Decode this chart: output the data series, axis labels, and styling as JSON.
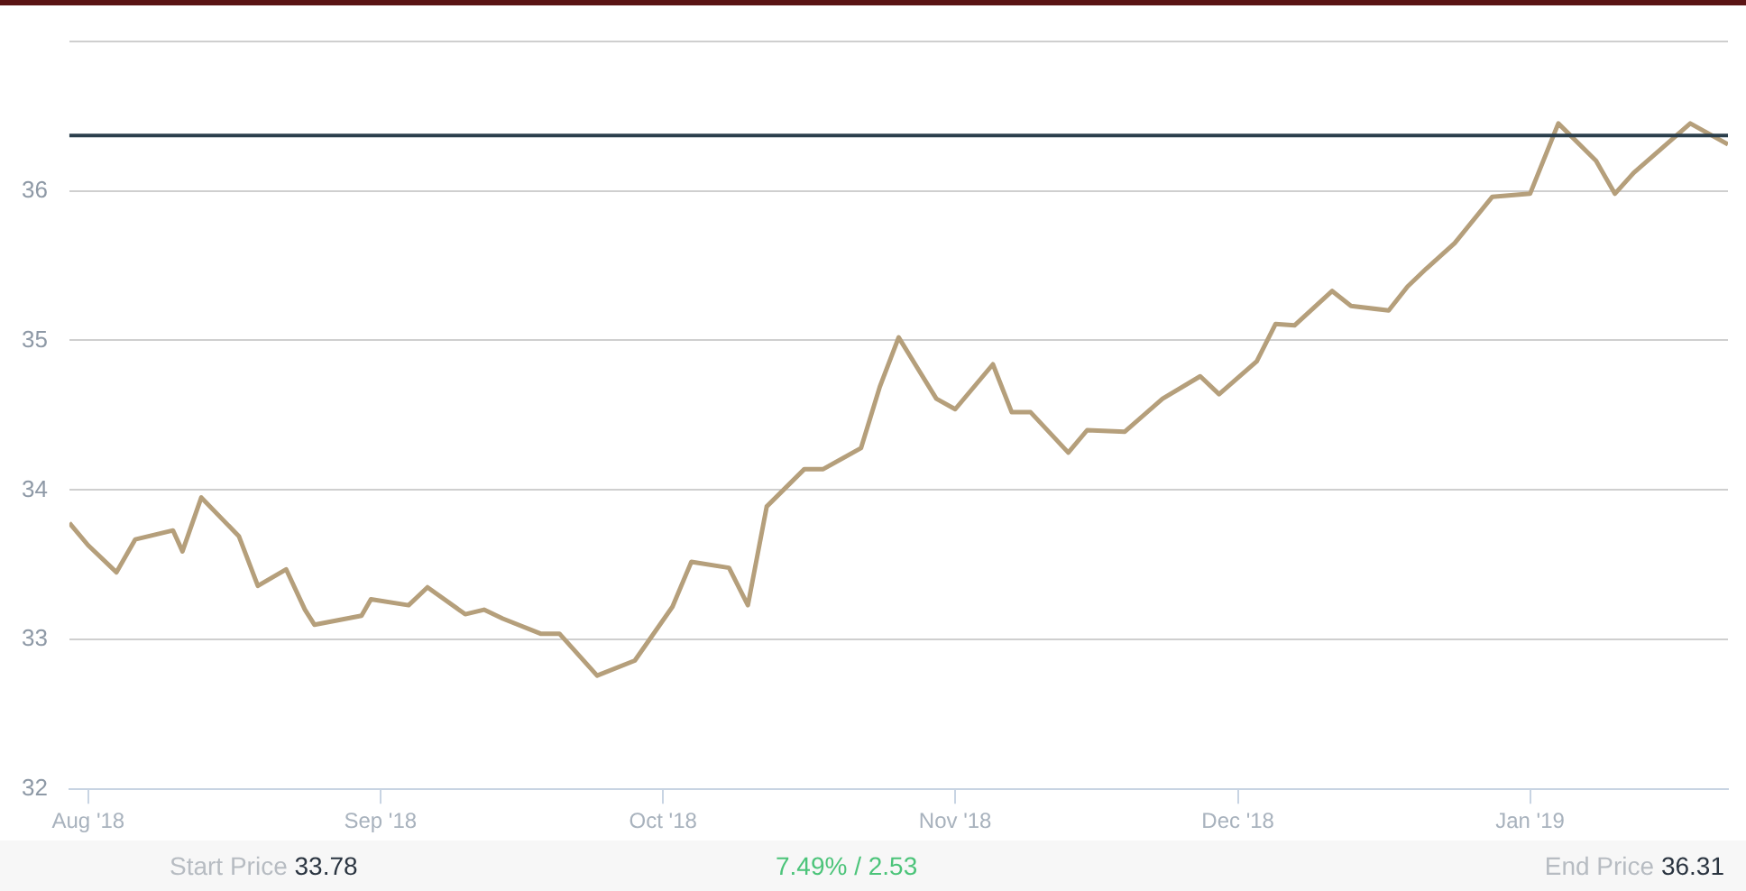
{
  "chart_data": {
    "type": "line",
    "x": [
      "2018-07-30",
      "2018-08-01",
      "2018-08-04",
      "2018-08-06",
      "2018-08-10",
      "2018-08-11",
      "2018-08-13",
      "2018-08-17",
      "2018-08-19",
      "2018-08-22",
      "2018-08-24",
      "2018-08-25",
      "2018-08-30",
      "2018-08-31",
      "2018-09-04",
      "2018-09-06",
      "2018-09-10",
      "2018-09-12",
      "2018-09-14",
      "2018-09-18",
      "2018-09-20",
      "2018-09-24",
      "2018-09-28",
      "2018-10-02",
      "2018-10-04",
      "2018-10-08",
      "2018-10-10",
      "2018-10-12",
      "2018-10-16",
      "2018-10-18",
      "2018-10-22",
      "2018-10-24",
      "2018-10-26",
      "2018-10-30",
      "2018-11-01",
      "2018-11-05",
      "2018-11-07",
      "2018-11-09",
      "2018-11-13",
      "2018-11-15",
      "2018-11-19",
      "2018-11-23",
      "2018-11-27",
      "2018-11-29",
      "2018-12-03",
      "2018-12-05",
      "2018-12-07",
      "2018-12-11",
      "2018-12-13",
      "2018-12-17",
      "2018-12-19",
      "2018-12-21",
      "2018-12-24",
      "2018-12-28",
      "2019-01-01",
      "2019-01-04",
      "2019-01-08",
      "2019-01-10",
      "2019-01-12",
      "2019-01-18",
      "2019-01-22"
    ],
    "series": [
      {
        "color": "#b59f7b",
        "values": [
          33.78,
          33.63,
          33.45,
          33.67,
          33.73,
          33.59,
          33.95,
          33.69,
          33.36,
          33.47,
          33.2,
          33.1,
          33.16,
          33.27,
          33.23,
          33.35,
          33.17,
          33.2,
          33.14,
          33.04,
          33.04,
          32.76,
          32.86,
          33.22,
          33.52,
          33.48,
          33.23,
          33.89,
          34.14,
          34.14,
          34.28,
          34.69,
          35.02,
          34.61,
          34.54,
          34.84,
          34.52,
          34.52,
          34.25,
          34.4,
          34.39,
          34.61,
          34.76,
          34.64,
          34.86,
          35.11,
          35.1,
          35.33,
          35.23,
          35.2,
          35.36,
          35.48,
          35.65,
          35.96,
          35.98,
          36.45,
          36.2,
          35.98,
          36.12,
          36.45,
          36.31
        ]
      }
    ],
    "xlim": [
      "2018-07-30",
      "2019-01-22"
    ],
    "xticks": [
      {
        "value": "2018-08-01",
        "label": "Aug '18"
      },
      {
        "value": "2018-09-01",
        "label": "Sep '18"
      },
      {
        "value": "2018-10-01",
        "label": "Oct '18"
      },
      {
        "value": "2018-11-01",
        "label": "Nov '18"
      },
      {
        "value": "2018-12-01",
        "label": "Dec '18"
      },
      {
        "value": "2019-01-01",
        "label": "Jan '19"
      }
    ],
    "ylim": [
      32,
      37
    ],
    "yticks": [
      32,
      33,
      34,
      35,
      36,
      {
        "value": 37,
        "label": null
      }
    ],
    "grid": "y",
    "legend": false,
    "marker": "none",
    "line_style": "solid",
    "ref_lines": [
      {
        "axis": "y",
        "value": 36.37,
        "color": "#2b3f4c",
        "line_style": "solid"
      }
    ],
    "annotations": [
      "Start Price 33.78",
      "7.49% / 2.53",
      "End Price 36.31"
    ]
  }
}
